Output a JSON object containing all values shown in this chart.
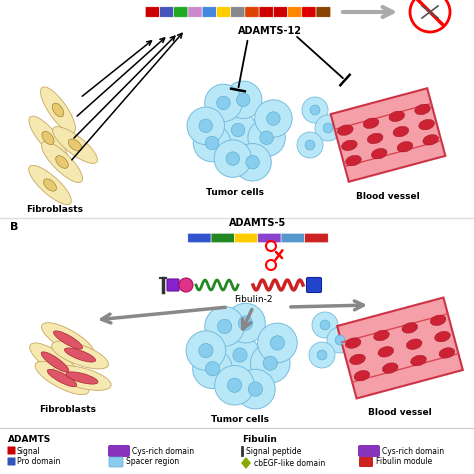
{
  "bg_color": "#ffffff",
  "title_A_label": "ADAMTS-12",
  "title_B_label": "ADAMTS-5",
  "fibulin_label": "Fibulin-2",
  "panel_B_label": "B",
  "fibroblasts_label": "Fibroblasts",
  "tumor_cells_label": "Tumor cells",
  "blood_vessel_label": "Blood vessel",
  "legend_ADAMTS_title": "ADAMTS",
  "legend_Fibulin_title": "Fibulin",
  "adamts12_colors": [
    "#cc0000",
    "#4455bb",
    "#22aa22",
    "#cc88cc",
    "#4488dd",
    "#ffcc00",
    "#888888",
    "#dd4400",
    "#cc0000",
    "#cc0000",
    "#ff8800",
    "#dd0000",
    "#884400"
  ],
  "adamts5_colors": [
    "#3355cc",
    "#228822",
    "#ffcc00",
    "#8844cc",
    "#5599cc",
    "#cc2222"
  ],
  "fibulin2_colors": [
    "#8822cc",
    "#cc3388",
    "#228822",
    "#cc3333",
    "#3355cc"
  ]
}
